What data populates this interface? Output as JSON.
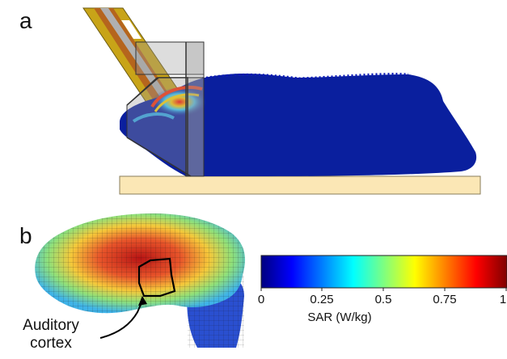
{
  "panels": {
    "a": {
      "label": "a"
    },
    "b": {
      "label": "b"
    }
  },
  "annotation": {
    "line1": "Auditory",
    "line2": "cortex"
  },
  "colorbar": {
    "title": "SAR (W/kg)",
    "ticks": [
      "0",
      "0.25",
      "0.5",
      "0.75",
      "1"
    ],
    "range": [
      0,
      1
    ],
    "colormap": [
      "#00007f",
      "#0000ff",
      "#007fff",
      "#00ffff",
      "#7fff7f",
      "#ffff00",
      "#ff7f00",
      "#ff0000",
      "#7f0000"
    ]
  },
  "colors": {
    "mouse_body": "#0a1f9e",
    "platform": "#fbe7b5",
    "probe_gold": "#c8a418",
    "probe_copper": "#b5651d",
    "frame_gray": "#9e9e9e"
  }
}
